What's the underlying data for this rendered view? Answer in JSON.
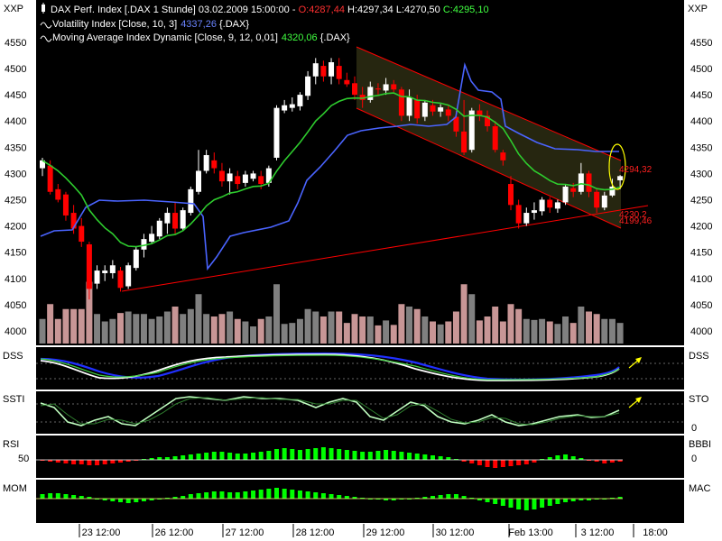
{
  "header": {
    "corner_left": "XXP",
    "corner_right": "XXP",
    "title_prefix": "DAX Perf. Index [.DAX  1 Stunde] 03.02.2009 15:00:00 - ",
    "open": "O:4287,44",
    "high_low": " H:4297,34 L:4270,50 ",
    "close": "C:4295,10",
    "vol_label": "Volatility Index [Close, 10, 3]",
    "vol_value": "4337,26",
    "vol_suffix": " {.DAX}",
    "ma_label": "Moving Average Index Dynamic [Close, 9, 12, 0,01]",
    "ma_value": "4320,06",
    "ma_suffix": " {.DAX}"
  },
  "colors": {
    "background": "#000000",
    "up_candle": "#ffffff",
    "down_candle": "#ff0000",
    "volatility": "#4a64ff",
    "moving_average": "#2ecc2e",
    "trend_lines": "#ff0000",
    "volume_up": "#808080",
    "volume_down": "#c89696",
    "histogram_up": "#00ff00",
    "histogram_down": "#ff0000",
    "annotation": "#ffff00",
    "channel_fill": "#262610"
  },
  "price_axis": {
    "ticks": [
      "4550",
      "4500",
      "4450",
      "4400",
      "4350",
      "4300",
      "4250",
      "4200",
      "4150",
      "4100",
      "4050",
      "4000"
    ]
  },
  "annotations": {
    "label_top": "4294,32",
    "label_mid": "4230,2",
    "label_bottom": "4199,46"
  },
  "panels": {
    "dss": {
      "left": "DSS",
      "right": "DSS"
    },
    "ssti": {
      "left": "SSTI",
      "right": "STO",
      "right_zero": "0"
    },
    "rsi": {
      "left": "RSI",
      "left_value": "50",
      "right": "BBBI",
      "right_zero": "0"
    },
    "mom": {
      "left": "MOM",
      "right": "MAC"
    }
  },
  "x_axis": {
    "ticks": [
      "23 12:00",
      "26 12:00",
      "27 12:00",
      "28 12:00",
      "29 12:00",
      "30 12:00",
      "Feb 13:00",
      "3 12:00",
      "18:00"
    ]
  },
  "chart_data": {
    "type": "candlestick",
    "title": "DAX Perf. Index [.DAX  1 Stunde]",
    "ylim": [
      3980,
      4560
    ],
    "candles": [
      {
        "o": 4310,
        "h": 4330,
        "l": 4295,
        "c": 4325
      },
      {
        "o": 4315,
        "h": 4325,
        "l": 4260,
        "c": 4265
      },
      {
        "o": 4270,
        "h": 4280,
        "l": 4245,
        "c": 4250
      },
      {
        "o": 4260,
        "h": 4265,
        "l": 4210,
        "c": 4220
      },
      {
        "o": 4225,
        "h": 4240,
        "l": 4185,
        "c": 4195
      },
      {
        "o": 4200,
        "h": 4215,
        "l": 4160,
        "c": 4170
      },
      {
        "o": 4165,
        "h": 4170,
        "l": 4060,
        "c": 4080
      },
      {
        "o": 4090,
        "h": 4125,
        "l": 4080,
        "c": 4115
      },
      {
        "o": 4110,
        "h": 4125,
        "l": 4095,
        "c": 4115
      },
      {
        "o": 4110,
        "h": 4135,
        "l": 4100,
        "c": 4125
      },
      {
        "o": 4115,
        "h": 4122,
        "l": 4075,
        "c": 4082
      },
      {
        "o": 4085,
        "h": 4130,
        "l": 4080,
        "c": 4125
      },
      {
        "o": 4120,
        "h": 4160,
        "l": 4115,
        "c": 4155
      },
      {
        "o": 4155,
        "h": 4185,
        "l": 4140,
        "c": 4175
      },
      {
        "o": 4170,
        "h": 4200,
        "l": 4165,
        "c": 4185
      },
      {
        "o": 4180,
        "h": 4215,
        "l": 4175,
        "c": 4210
      },
      {
        "o": 4205,
        "h": 4235,
        "l": 4185,
        "c": 4225
      },
      {
        "o": 4225,
        "h": 4245,
        "l": 4185,
        "c": 4195
      },
      {
        "o": 4195,
        "h": 4235,
        "l": 4190,
        "c": 4230
      },
      {
        "o": 4225,
        "h": 4275,
        "l": 4220,
        "c": 4270
      },
      {
        "o": 4265,
        "h": 4345,
        "l": 4260,
        "c": 4305
      },
      {
        "o": 4305,
        "h": 4345,
        "l": 4300,
        "c": 4335
      },
      {
        "o": 4325,
        "h": 4340,
        "l": 4300,
        "c": 4310
      },
      {
        "o": 4305,
        "h": 4320,
        "l": 4275,
        "c": 4285
      },
      {
        "o": 4285,
        "h": 4310,
        "l": 4260,
        "c": 4300
      },
      {
        "o": 4295,
        "h": 4305,
        "l": 4270,
        "c": 4280
      },
      {
        "o": 4282,
        "h": 4305,
        "l": 4275,
        "c": 4298
      },
      {
        "o": 4290,
        "h": 4305,
        "l": 4285,
        "c": 4300
      },
      {
        "o": 4295,
        "h": 4305,
        "l": 4270,
        "c": 4280
      },
      {
        "o": 4282,
        "h": 4315,
        "l": 4275,
        "c": 4310
      },
      {
        "o": 4330,
        "h": 4430,
        "l": 4325,
        "c": 4425
      },
      {
        "o": 4420,
        "h": 4440,
        "l": 4415,
        "c": 4430
      },
      {
        "o": 4425,
        "h": 4445,
        "l": 4418,
        "c": 4432
      },
      {
        "o": 4428,
        "h": 4455,
        "l": 4420,
        "c": 4450
      },
      {
        "o": 4448,
        "h": 4495,
        "l": 4440,
        "c": 4485
      },
      {
        "o": 4485,
        "h": 4520,
        "l": 4470,
        "c": 4510
      },
      {
        "o": 4505,
        "h": 4515,
        "l": 4475,
        "c": 4485
      },
      {
        "o": 4485,
        "h": 4520,
        "l": 4470,
        "c": 4512
      },
      {
        "o": 4505,
        "h": 4520,
        "l": 4470,
        "c": 4480
      },
      {
        "o": 4478,
        "h": 4492,
        "l": 4465,
        "c": 4470
      },
      {
        "o": 4472,
        "h": 4485,
        "l": 4440,
        "c": 4450
      },
      {
        "o": 4450,
        "h": 4465,
        "l": 4425,
        "c": 4440
      },
      {
        "o": 4440,
        "h": 4475,
        "l": 4435,
        "c": 4465
      },
      {
        "o": 4462,
        "h": 4472,
        "l": 4450,
        "c": 4460
      },
      {
        "o": 4458,
        "h": 4482,
        "l": 4450,
        "c": 4470
      },
      {
        "o": 4470,
        "h": 4478,
        "l": 4455,
        "c": 4460
      },
      {
        "o": 4460,
        "h": 4465,
        "l": 4400,
        "c": 4410
      },
      {
        "o": 4410,
        "h": 4460,
        "l": 4400,
        "c": 4445
      },
      {
        "o": 4440,
        "h": 4450,
        "l": 4395,
        "c": 4405
      },
      {
        "o": 4408,
        "h": 4440,
        "l": 4400,
        "c": 4435
      },
      {
        "o": 4430,
        "h": 4440,
        "l": 4410,
        "c": 4418
      },
      {
        "o": 4418,
        "h": 4432,
        "l": 4408,
        "c": 4426
      },
      {
        "o": 4422,
        "h": 4430,
        "l": 4400,
        "c": 4410
      },
      {
        "o": 4408,
        "h": 4420,
        "l": 4370,
        "c": 4380
      },
      {
        "o": 4380,
        "h": 4440,
        "l": 4335,
        "c": 4340
      },
      {
        "o": 4345,
        "h": 4425,
        "l": 4340,
        "c": 4420
      },
      {
        "o": 4420,
        "h": 4432,
        "l": 4400,
        "c": 4410
      },
      {
        "o": 4410,
        "h": 4420,
        "l": 4380,
        "c": 4390
      },
      {
        "o": 4390,
        "h": 4400,
        "l": 4340,
        "c": 4345
      },
      {
        "o": 4340,
        "h": 4345,
        "l": 4315,
        "c": 4325
      },
      {
        "o": 4280,
        "h": 4295,
        "l": 4230,
        "c": 4240
      },
      {
        "o": 4240,
        "h": 4250,
        "l": 4195,
        "c": 4205
      },
      {
        "o": 4205,
        "h": 4235,
        "l": 4200,
        "c": 4225
      },
      {
        "o": 4225,
        "h": 4245,
        "l": 4212,
        "c": 4230
      },
      {
        "o": 4228,
        "h": 4255,
        "l": 4220,
        "c": 4250
      },
      {
        "o": 4250,
        "h": 4255,
        "l": 4225,
        "c": 4235
      },
      {
        "o": 4233,
        "h": 4250,
        "l": 4225,
        "c": 4245
      },
      {
        "o": 4245,
        "h": 4280,
        "l": 4240,
        "c": 4275
      },
      {
        "o": 4272,
        "h": 4282,
        "l": 4255,
        "c": 4265
      },
      {
        "o": 4265,
        "h": 4320,
        "l": 4260,
        "c": 4300
      },
      {
        "o": 4300,
        "h": 4305,
        "l": 4255,
        "c": 4265
      },
      {
        "o": 4265,
        "h": 4270,
        "l": 4225,
        "c": 4235
      },
      {
        "o": 4235,
        "h": 4265,
        "l": 4230,
        "c": 4258
      },
      {
        "o": 4258,
        "h": 4290,
        "l": 4255,
        "c": 4275
      },
      {
        "o": 4287,
        "h": 4297,
        "l": 4270,
        "c": 4295
      }
    ]
  }
}
